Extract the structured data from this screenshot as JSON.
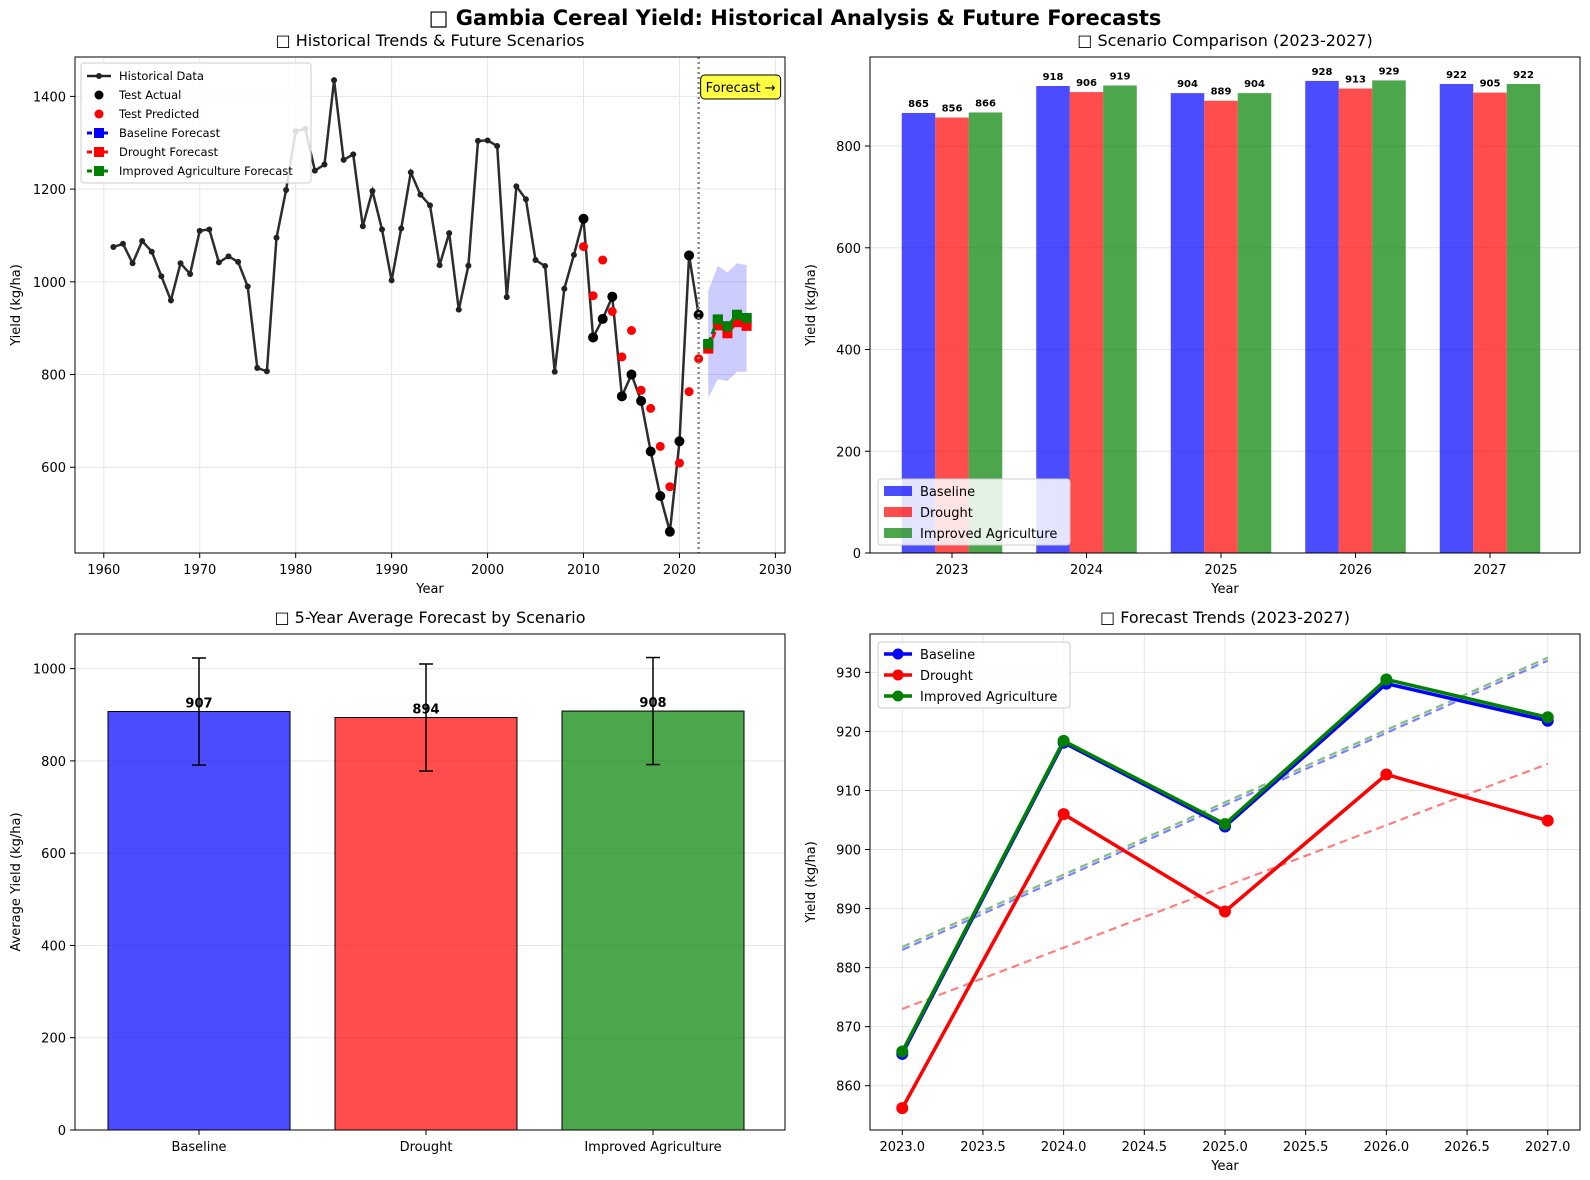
{
  "suptitle": "□ Gambia Cereal Yield: Historical Analysis & Future Forecasts",
  "colors": {
    "baseline": "#0000ff",
    "drought": "#ff0000",
    "improved": "#008000",
    "historical": "#222222"
  },
  "chart_data": [
    {
      "type": "line",
      "title": "□ Historical Trends & Future Scenarios",
      "xlabel": "Year",
      "ylabel": "Yield (kg/ha)",
      "xlim": [
        1957,
        2031
      ],
      "ylim": [
        415,
        1485
      ],
      "xticks": [
        1960,
        1970,
        1980,
        1990,
        2000,
        2010,
        2020,
        2030
      ],
      "yticks": [
        600,
        800,
        1000,
        1200,
        1400
      ],
      "grid": true,
      "legend_position": "top-left",
      "annotation": "Forecast →",
      "forecast_start_line": 2022,
      "historical": {
        "name": "Historical Data",
        "x": [
          1961,
          1962,
          1963,
          1964,
          1965,
          1966,
          1967,
          1968,
          1969,
          1970,
          1971,
          1972,
          1973,
          1974,
          1975,
          1976,
          1977,
          1978,
          1979,
          1980,
          1981,
          1982,
          1983,
          1984,
          1985,
          1986,
          1987,
          1988,
          1989,
          1990,
          1991,
          1992,
          1993,
          1994,
          1995,
          1996,
          1997,
          1998,
          1999,
          2000,
          2001,
          2002,
          2003,
          2004,
          2005,
          2006,
          2007,
          2008,
          2009,
          2010,
          2011,
          2012,
          2013,
          2014,
          2015,
          2016,
          2017,
          2018,
          2019,
          2020,
          2021,
          2022
        ],
        "y": [
          1075,
          1082,
          1040,
          1088,
          1065,
          1012,
          960,
          1040,
          1017,
          1110,
          1113,
          1042,
          1055,
          1043,
          990,
          814,
          807,
          1095,
          1198,
          1325,
          1330,
          1240,
          1253,
          1435,
          1263,
          1275,
          1120,
          1196,
          1113,
          1003,
          1115,
          1236,
          1188,
          1165,
          1036,
          1105,
          940,
          1035,
          1304,
          1305,
          1293,
          967,
          1206,
          1178,
          1047,
          1034,
          806,
          985,
          1058,
          1136,
          880,
          920,
          968,
          753,
          800,
          743,
          634,
          538,
          461,
          656,
          1057,
          929
        ]
      },
      "test_actual": {
        "name": "Test Actual",
        "x": [
          2010,
          2011,
          2012,
          2013,
          2014,
          2015,
          2016,
          2017,
          2018,
          2019,
          2020,
          2021,
          2022
        ],
        "y": [
          1136,
          880,
          920,
          968,
          753,
          800,
          743,
          634,
          538,
          461,
          656,
          1057,
          929
        ]
      },
      "test_predicted": {
        "name": "Test Predicted",
        "x": [
          2010,
          2011,
          2012,
          2013,
          2014,
          2015,
          2016,
          2017,
          2018,
          2019,
          2020,
          2021,
          2022
        ],
        "y": [
          1076,
          970,
          1047,
          936,
          838,
          895,
          766,
          727,
          645,
          558,
          609,
          763,
          834
        ]
      },
      "forecast_x": [
        2023,
        2024,
        2025,
        2026,
        2027
      ],
      "series": [
        {
          "name": "Baseline Forecast",
          "values": [
            865,
            918,
            904,
            928,
            922
          ]
        },
        {
          "name": "Drought Forecast",
          "values": [
            856,
            906,
            889,
            913,
            905
          ]
        },
        {
          "name": "Improved Agriculture Forecast",
          "values": [
            866,
            919,
            904,
            929,
            922
          ]
        }
      ],
      "forecast_band": {
        "lower": [
          750,
          790,
          786,
          806,
          806
        ],
        "upper": [
          980,
          1034,
          1020,
          1040,
          1036
        ]
      }
    },
    {
      "type": "bar",
      "title": "□ Scenario Comparison (2023-2027)",
      "xlabel": "Year",
      "ylabel": "Yield (kg/ha)",
      "ylim": [
        0,
        975
      ],
      "yticks": [
        0,
        200,
        400,
        600,
        800
      ],
      "grid": true,
      "legend_position": "bottom-left",
      "categories": [
        "2023",
        "2024",
        "2025",
        "2026",
        "2027"
      ],
      "series": [
        {
          "name": "Baseline",
          "values": [
            865,
            918,
            904,
            928,
            922
          ]
        },
        {
          "name": "Drought",
          "values": [
            856,
            906,
            889,
            913,
            905
          ]
        },
        {
          "name": "Improved Agriculture",
          "values": [
            866,
            919,
            904,
            929,
            922
          ]
        }
      ]
    },
    {
      "type": "bar",
      "title": "□ 5-Year Average Forecast by Scenario",
      "xlabel": "",
      "ylabel": "Average Yield (kg/ha)",
      "ylim": [
        0,
        1075
      ],
      "yticks": [
        0,
        200,
        400,
        600,
        800,
        1000
      ],
      "grid": true,
      "categories": [
        "Baseline",
        "Drought",
        "Improved Agriculture"
      ],
      "values": [
        907,
        894,
        908
      ],
      "labels": [
        "907",
        "894",
        "908"
      ],
      "error": [
        116,
        116,
        116
      ]
    },
    {
      "type": "line",
      "title": "□ Forecast Trends (2023-2027)",
      "xlabel": "Year",
      "ylabel": "Yield (kg/ha)",
      "xlim": [
        2022.8,
        2027.2
      ],
      "ylim": [
        852.5,
        936.5
      ],
      "xticks": [
        "2023.0",
        "2023.5",
        "2024.0",
        "2024.5",
        "2025.0",
        "2025.5",
        "2026.0",
        "2026.5",
        "2027.0"
      ],
      "yticks": [
        860,
        870,
        880,
        890,
        900,
        910,
        920,
        930
      ],
      "grid": true,
      "legend_position": "top-left",
      "x": [
        2023,
        2024,
        2025,
        2026,
        2027
      ],
      "series": [
        {
          "name": "Baseline",
          "values": [
            865.4,
            918.1,
            903.9,
            928.1,
            921.8
          ],
          "trend": [
            883.0,
            932.0
          ]
        },
        {
          "name": "Drought",
          "values": [
            856.2,
            906.0,
            889.5,
            912.7,
            904.9
          ],
          "trend": [
            873.0,
            914.5
          ]
        },
        {
          "name": "Improved Agriculture",
          "values": [
            865.8,
            918.4,
            904.3,
            928.8,
            922.4
          ],
          "trend": [
            883.5,
            932.5
          ]
        }
      ]
    }
  ]
}
